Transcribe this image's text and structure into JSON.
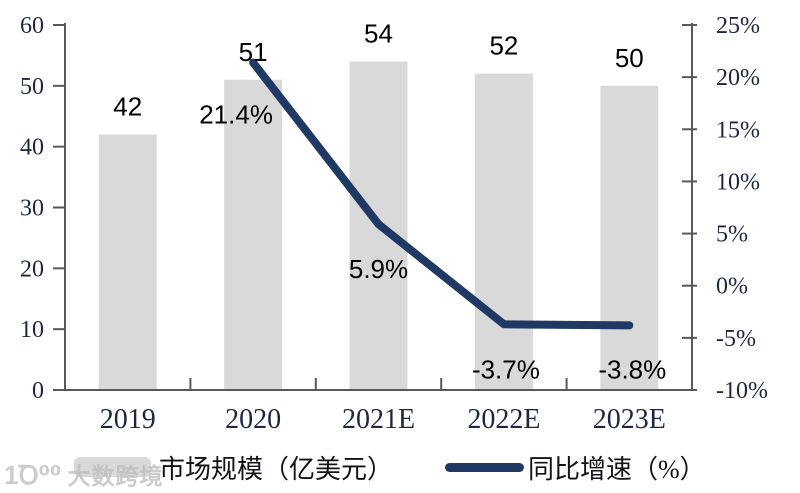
{
  "watermark": {
    "logo": "1Ꝺ⁰⁰",
    "text": "大数跨境"
  },
  "legend": {
    "items": [
      {
        "label": "市场规模（亿美元）",
        "type": "bar",
        "color": "#d9d9d9"
      },
      {
        "label": "同比增速（%）",
        "type": "line",
        "color": "#1f3864"
      }
    ],
    "position": "bottom"
  },
  "chart_data": {
    "type": "bar+line",
    "title": "",
    "categories": [
      "2019",
      "2020",
      "2021E",
      "2022E",
      "2023E"
    ],
    "series": [
      {
        "name": "市场规模（亿美元）",
        "type": "bar",
        "axis": "left",
        "color": "#d9d9d9",
        "values": [
          42,
          51,
          54,
          52,
          50
        ],
        "labels": [
          "42",
          "51",
          "54",
          "52",
          "50"
        ]
      },
      {
        "name": "同比增速（%）",
        "type": "line",
        "axis": "right",
        "color": "#1f3864",
        "values": [
          null,
          21.4,
          5.9,
          -3.7,
          -3.8
        ],
        "labels": [
          null,
          "21.4%",
          "5.9%",
          "-3.7%",
          "-3.8%"
        ]
      }
    ],
    "left_axis": {
      "min": 0,
      "max": 60,
      "ticks": [
        {
          "label": "60",
          "value": 60
        },
        {
          "label": "50",
          "value": 50
        },
        {
          "label": "40",
          "value": 40
        },
        {
          "label": "30",
          "value": 30
        },
        {
          "label": "20",
          "value": 20
        },
        {
          "label": "10",
          "value": 10
        },
        {
          "label": "0",
          "value": 0
        }
      ]
    },
    "right_axis": {
      "min": -10,
      "max": 25,
      "ticks": [
        {
          "label": "25%",
          "value": 25
        },
        {
          "label": "20%",
          "value": 20
        },
        {
          "label": "15%",
          "value": 15
        },
        {
          "label": "10%",
          "value": 10
        },
        {
          "label": "5%",
          "value": 5
        },
        {
          "label": "0%",
          "value": 0
        },
        {
          "label": "-5%",
          "value": -5
        },
        {
          "label": "-10%",
          "value": -10
        }
      ]
    },
    "grid": false,
    "legend_position": "bottom",
    "colors": {
      "bar": "#d9d9d9",
      "line": "#1f3864",
      "axis": "#58595b",
      "tick_text": "#1d2740",
      "data_label_text": "#000000"
    }
  }
}
